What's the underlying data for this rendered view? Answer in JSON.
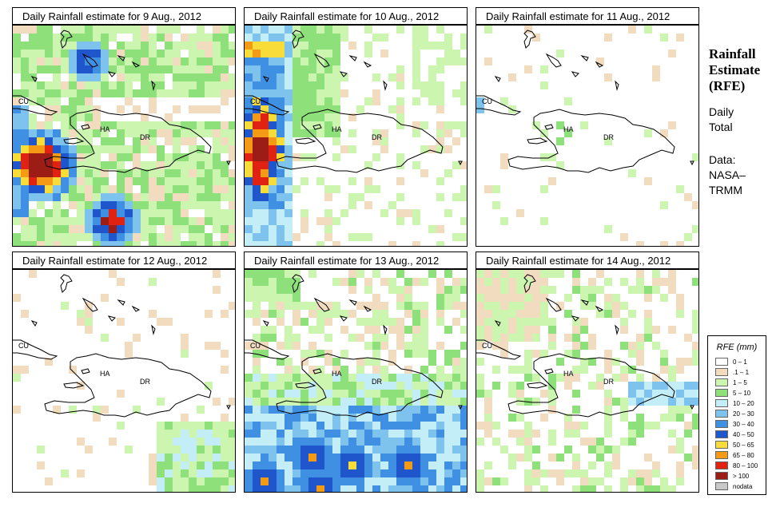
{
  "panels": [
    {
      "title": "Daily Rainfall estimate for  9 Aug., 2012",
      "day": "9"
    },
    {
      "title": "Daily Rainfall estimate for  10 Aug., 2012",
      "day": "10"
    },
    {
      "title": "Daily Rainfall estimate for  11 Aug., 2012",
      "day": "11"
    },
    {
      "title": "Daily Rainfall estimate for  12 Aug., 2012",
      "day": "12"
    },
    {
      "title": "Daily Rainfall estimate for  13 Aug., 2012",
      "day": "13"
    },
    {
      "title": "Daily Rainfall estimate for  14 Aug., 2012",
      "day": "14"
    }
  ],
  "map_labels": {
    "cuba": "CU",
    "haiti": "HA",
    "dominican_republic": "DR"
  },
  "side": {
    "title_lines": [
      "Rainfall",
      "Estimate",
      "(RFE)"
    ],
    "period_lines": [
      "Daily",
      "Total"
    ],
    "source_lines": [
      "Data:",
      "NASA–",
      "TRMM"
    ]
  },
  "legend": {
    "title": "RFE (mm)",
    "classes": [
      {
        "label": "0 – 1",
        "color": "#ffffff"
      },
      {
        "label": ".1 – 1",
        "color": "#f2dcc0"
      },
      {
        "label": "1 – 5",
        "color": "#ccf5b0"
      },
      {
        "label": "5 – 10",
        "color": "#8ee07a"
      },
      {
        "label": "10 – 20",
        "color": "#c3eef8"
      },
      {
        "label": "20 – 30",
        "color": "#7ec3ee"
      },
      {
        "label": "30 – 40",
        "color": "#3f8fe3"
      },
      {
        "label": "40 – 50",
        "color": "#1f56cc"
      },
      {
        "label": "50 – 65",
        "color": "#f8dc3a"
      },
      {
        "label": "65 – 80",
        "color": "#f59a14"
      },
      {
        "label": "80 – 100",
        "color": "#df2212"
      },
      {
        "label": "> 100",
        "color": "#9c1c16"
      },
      {
        "label": "nodata",
        "color": "#c8c8c8"
      }
    ]
  }
}
